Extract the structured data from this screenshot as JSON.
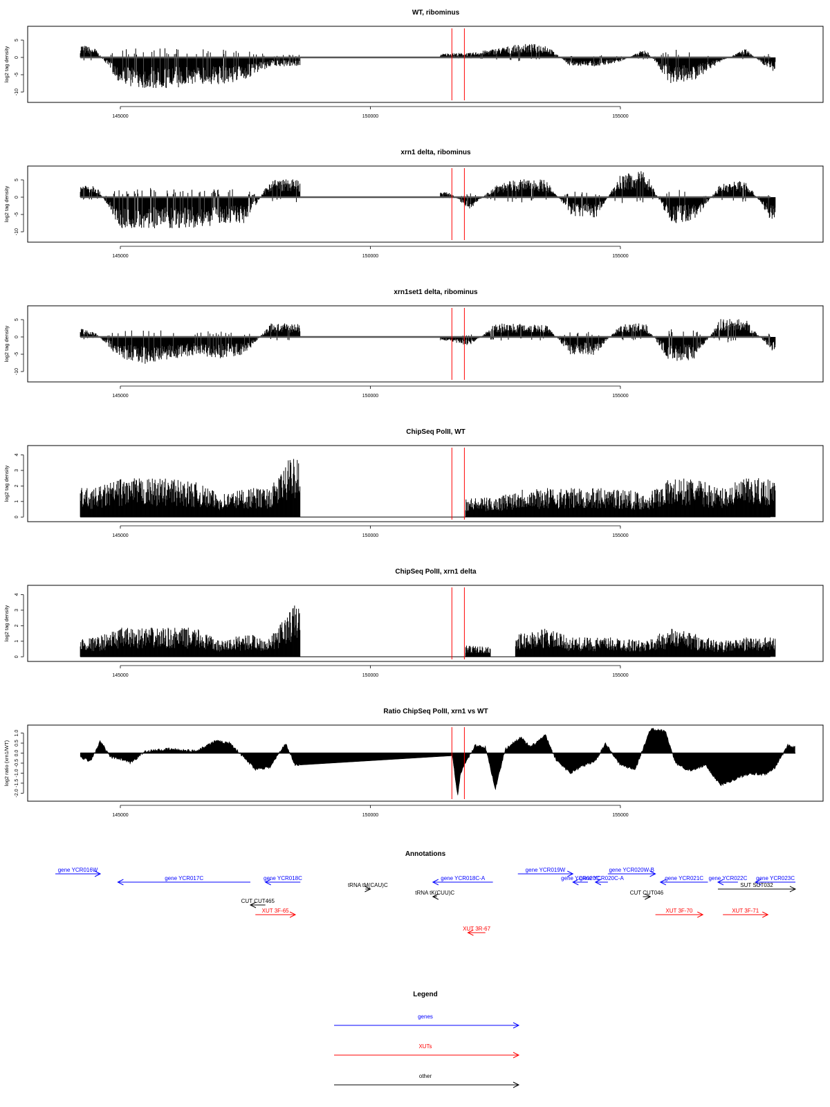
{
  "colors": {
    "gene": "#0000ff",
    "xut": "#ff0000",
    "other": "#000000",
    "marker": "#ff0000",
    "bars": "#000000"
  },
  "chart_data": [
    {
      "type": "bar",
      "title": "WT, ribominus",
      "ylabel": "log2 tag density",
      "xlim": [
        143700,
        158500
      ],
      "ylim": [
        -13,
        9
      ],
      "xticks": [
        145000,
        150000,
        155000
      ],
      "yticks": [
        5,
        0,
        -5,
        -10
      ],
      "ytick_labels": [
        "5",
        "0",
        "-5",
        "-10"
      ],
      "red_lines_x": [
        151630,
        151880
      ],
      "x": [
        144200,
        144500,
        145000,
        145500,
        146000,
        146500,
        147000,
        147500,
        148000,
        148500,
        151600,
        152000,
        152500,
        153000,
        153500,
        154000,
        154500,
        155000,
        155500,
        156000,
        156500,
        157000,
        157500,
        158000
      ],
      "series": [
        {
          "values": [
            3,
            2,
            -6,
            -7,
            -7,
            -6,
            -6,
            -5,
            -2,
            -2,
            1,
            1,
            2,
            3,
            3,
            -2,
            -2,
            -1,
            2,
            -6,
            -5,
            -1,
            2,
            -3
          ]
        }
      ]
    },
    {
      "type": "bar",
      "title": "xrn1 delta, ribominus",
      "ylabel": "log2 tag density",
      "xlim": [
        143700,
        158500
      ],
      "ylim": [
        -13,
        9
      ],
      "xticks": [
        145000,
        150000,
        155000
      ],
      "yticks": [
        5,
        0,
        -5,
        -10
      ],
      "ytick_labels": [
        "5",
        "0",
        "-5",
        "-10"
      ],
      "red_lines_x": [
        151630,
        151880
      ],
      "x": [
        144200,
        144500,
        145000,
        145500,
        146000,
        146500,
        147000,
        147500,
        148000,
        148500,
        151600,
        152000,
        152500,
        153000,
        153500,
        154000,
        154500,
        155000,
        155500,
        156000,
        156500,
        157000,
        157500,
        158000
      ],
      "series": [
        {
          "values": [
            3,
            3,
            -7,
            -7,
            -7,
            -7,
            -6,
            -6,
            4,
            4,
            1,
            -3,
            3,
            4,
            4,
            -4,
            -5,
            5,
            6,
            -6,
            -5,
            3,
            4,
            -5
          ]
        }
      ]
    },
    {
      "type": "bar",
      "title": "xrn1set1 delta, ribominus",
      "ylabel": "log2 tag density",
      "xlim": [
        143700,
        158500
      ],
      "ylim": [
        -13,
        9
      ],
      "xticks": [
        145000,
        150000,
        155000
      ],
      "yticks": [
        5,
        0,
        -5,
        -10
      ],
      "ytick_labels": [
        "5",
        "0",
        "-5",
        "-10"
      ],
      "red_lines_x": [
        151630,
        151880
      ],
      "x": [
        144200,
        144500,
        145000,
        145500,
        146000,
        146500,
        147000,
        147500,
        148000,
        148500,
        151600,
        152000,
        152500,
        153000,
        153500,
        154000,
        154500,
        155000,
        155500,
        156000,
        156500,
        157000,
        157500,
        158000
      ],
      "series": [
        {
          "values": [
            2,
            1,
            -5,
            -6,
            -5,
            -4,
            -5,
            -4,
            3,
            3,
            -1,
            -2,
            3,
            3,
            3,
            -4,
            -4,
            3,
            3,
            -6,
            -5,
            4,
            4,
            -3
          ]
        }
      ]
    },
    {
      "type": "bar",
      "title": "ChipSeq PolII, WT",
      "ylabel": "log2 tag density",
      "xlim": [
        143700,
        158500
      ],
      "ylim": [
        -0.3,
        4.6
      ],
      "xticks": [
        145000,
        150000,
        155000
      ],
      "yticks": [
        0,
        1,
        2,
        3,
        4
      ],
      "ytick_labels": [
        "0",
        "1",
        "2",
        "3",
        "4"
      ],
      "red_lines_x": [
        151630,
        151880
      ],
      "x": [
        144200,
        144500,
        145000,
        145500,
        146000,
        146500,
        147000,
        147500,
        148000,
        148500,
        151900,
        152500,
        153000,
        153500,
        154000,
        154500,
        155000,
        155500,
        156000,
        156500,
        157000,
        157500,
        158000
      ],
      "series": [
        {
          "values": [
            1.5,
            1.5,
            2,
            2,
            2,
            1.8,
            1.2,
            1.5,
            1.5,
            3.5,
            1,
            1,
            1.5,
            1.5,
            1.5,
            1.5,
            1.5,
            1.2,
            2,
            2,
            1.5,
            2,
            2
          ]
        }
      ]
    },
    {
      "type": "bar",
      "title": "ChipSeq PolII, xrn1 delta",
      "ylabel": "log2 tag density",
      "xlim": [
        143700,
        158500
      ],
      "ylim": [
        -0.3,
        4.6
      ],
      "xticks": [
        145000,
        150000,
        155000
      ],
      "yticks": [
        0,
        1,
        2,
        3,
        4
      ],
      "ytick_labels": [
        "0",
        "1",
        "2",
        "3",
        "4"
      ],
      "red_lines_x": [
        151630,
        151880
      ],
      "x": [
        144200,
        144500,
        145000,
        145500,
        146000,
        146500,
        147000,
        147500,
        148000,
        148500,
        151900,
        152500,
        153000,
        153500,
        154000,
        154500,
        155000,
        155500,
        156000,
        156500,
        157000,
        157500,
        158000
      ],
      "series": [
        {
          "values": [
            1,
            1,
            1.5,
            1.5,
            1.5,
            1.5,
            0.8,
            1.2,
            1,
            2.8,
            0.6,
            0.5,
            1.2,
            1.5,
            1,
            1,
            1,
            0.8,
            1.5,
            1.2,
            0.8,
            1,
            1
          ]
        }
      ]
    },
    {
      "type": "area",
      "title": "Ratio ChipSeq PolII, xrn1 vs WT",
      "ylabel": "log2 ratio (xrn1/WT)",
      "xlim": [
        143700,
        158500
      ],
      "ylim": [
        -2.4,
        1.4
      ],
      "xticks": [
        145000,
        150000,
        155000
      ],
      "yticks": [
        1,
        0.5,
        0,
        -0.5,
        -1,
        -1.5,
        -2
      ],
      "ytick_labels": [
        "1.0",
        "0.5",
        "0.0",
        "-0.5",
        "-1.0",
        "-1.5",
        "-2.0"
      ],
      "red_lines_x": [
        151630,
        151880
      ],
      "x": [
        144200,
        144400,
        144600,
        144800,
        145000,
        145200,
        145500,
        146000,
        146500,
        146900,
        147200,
        147500,
        147700,
        148000,
        148300,
        148500,
        151630,
        151750,
        151800,
        151900,
        152100,
        152300,
        152500,
        152700,
        153000,
        153200,
        153500,
        153700,
        154000,
        154200,
        154500,
        154700,
        155000,
        155300,
        155600,
        155900,
        156100,
        156400,
        156700,
        157000,
        157300,
        157600,
        157900,
        158100,
        158350,
        158500
      ],
      "series": [
        {
          "values": [
            -0.2,
            -0.4,
            0.6,
            -0.2,
            -0.3,
            -0.5,
            0.1,
            0.2,
            0.1,
            0.6,
            0.5,
            -0.3,
            -0.8,
            -0.7,
            0.5,
            -0.6,
            0,
            -2.2,
            -1.0,
            -0.5,
            0.4,
            0.3,
            -1.8,
            0.2,
            0.8,
            0.3,
            0.9,
            -0.3,
            -1.0,
            -0.7,
            -0.4,
            0.5,
            -0.6,
            -0.8,
            1.2,
            1.1,
            -0.5,
            -0.9,
            -0.6,
            -1.6,
            -1.3,
            -1.0,
            -1.1,
            -0.7,
            0.4,
            0.3
          ]
        }
      ]
    }
  ],
  "annotations": {
    "title": "Annotations",
    "xlim": [
      143700,
      158500
    ],
    "features": [
      {
        "label": "gene YCR016W",
        "start": 143700,
        "end": 144600,
        "row": 0,
        "type": "gene",
        "dir": "right"
      },
      {
        "label": "gene YCR017C",
        "start": 144950,
        "end": 147600,
        "row": 1,
        "type": "gene",
        "dir": "left"
      },
      {
        "label": "gene YCR018C",
        "start": 147900,
        "end": 148600,
        "row": 1,
        "type": "gene",
        "dir": "left"
      },
      {
        "label": "tRNA tM(CAU)C",
        "start": 149900,
        "end": 150000,
        "row": 2,
        "type": "other",
        "dir": "right"
      },
      {
        "label": "tRNA tK(CUU)C",
        "start": 151250,
        "end": 151330,
        "row": 3,
        "type": "other",
        "dir": "left"
      },
      {
        "label": "gene YCR018C-A",
        "start": 151250,
        "end": 152450,
        "row": 1,
        "type": "gene",
        "dir": "left"
      },
      {
        "label": "gene YCR019W",
        "start": 152950,
        "end": 154050,
        "row": 0,
        "type": "gene",
        "dir": "right"
      },
      {
        "label": "gene YCR020C",
        "start": 154050,
        "end": 154350,
        "row": 1,
        "type": "gene",
        "dir": "left"
      },
      {
        "label": "gene YCR020C-A",
        "start": 154500,
        "end": 154750,
        "row": 1,
        "type": "gene",
        "dir": "left"
      },
      {
        "label": "gene YCR020W-B",
        "start": 154750,
        "end": 155700,
        "row": 0,
        "type": "gene",
        "dir": "right"
      },
      {
        "label": "gene YCR021C",
        "start": 155800,
        "end": 156750,
        "row": 1,
        "type": "gene",
        "dir": "left"
      },
      {
        "label": "gene YCR022C",
        "start": 156950,
        "end": 157350,
        "row": 1,
        "type": "gene",
        "dir": "left"
      },
      {
        "label": "gene YCR023C",
        "start": 157700,
        "end": 158500,
        "row": 1,
        "type": "gene",
        "dir": "left"
      },
      {
        "label": "SUT SUT032",
        "start": 156950,
        "end": 158500,
        "row": 2,
        "type": "other",
        "dir": "right"
      },
      {
        "label": "CUT CUT465",
        "start": 147600,
        "end": 147900,
        "row": 4,
        "type": "other",
        "dir": "left"
      },
      {
        "label": "CUT CUT046",
        "start": 155450,
        "end": 155600,
        "row": 3,
        "type": "other",
        "dir": "right"
      },
      {
        "label": "XUT 3F-65",
        "start": 147700,
        "end": 148500,
        "row": 5,
        "type": "xut",
        "dir": "right"
      },
      {
        "label": "XUT 3R-67",
        "start": 151950,
        "end": 152300,
        "row": 6,
        "type": "xut",
        "dir": "left"
      },
      {
        "label": "XUT 3F-70",
        "start": 155700,
        "end": 156650,
        "row": 5,
        "type": "xut",
        "dir": "right"
      },
      {
        "label": "XUT 3F-71",
        "start": 157050,
        "end": 157950,
        "row": 5,
        "type": "xut",
        "dir": "right"
      }
    ]
  },
  "legend": {
    "title": "Legend",
    "items": [
      {
        "label": "genes",
        "type": "gene"
      },
      {
        "label": "XUTs",
        "type": "xut"
      },
      {
        "label": "other",
        "type": "other"
      }
    ]
  }
}
